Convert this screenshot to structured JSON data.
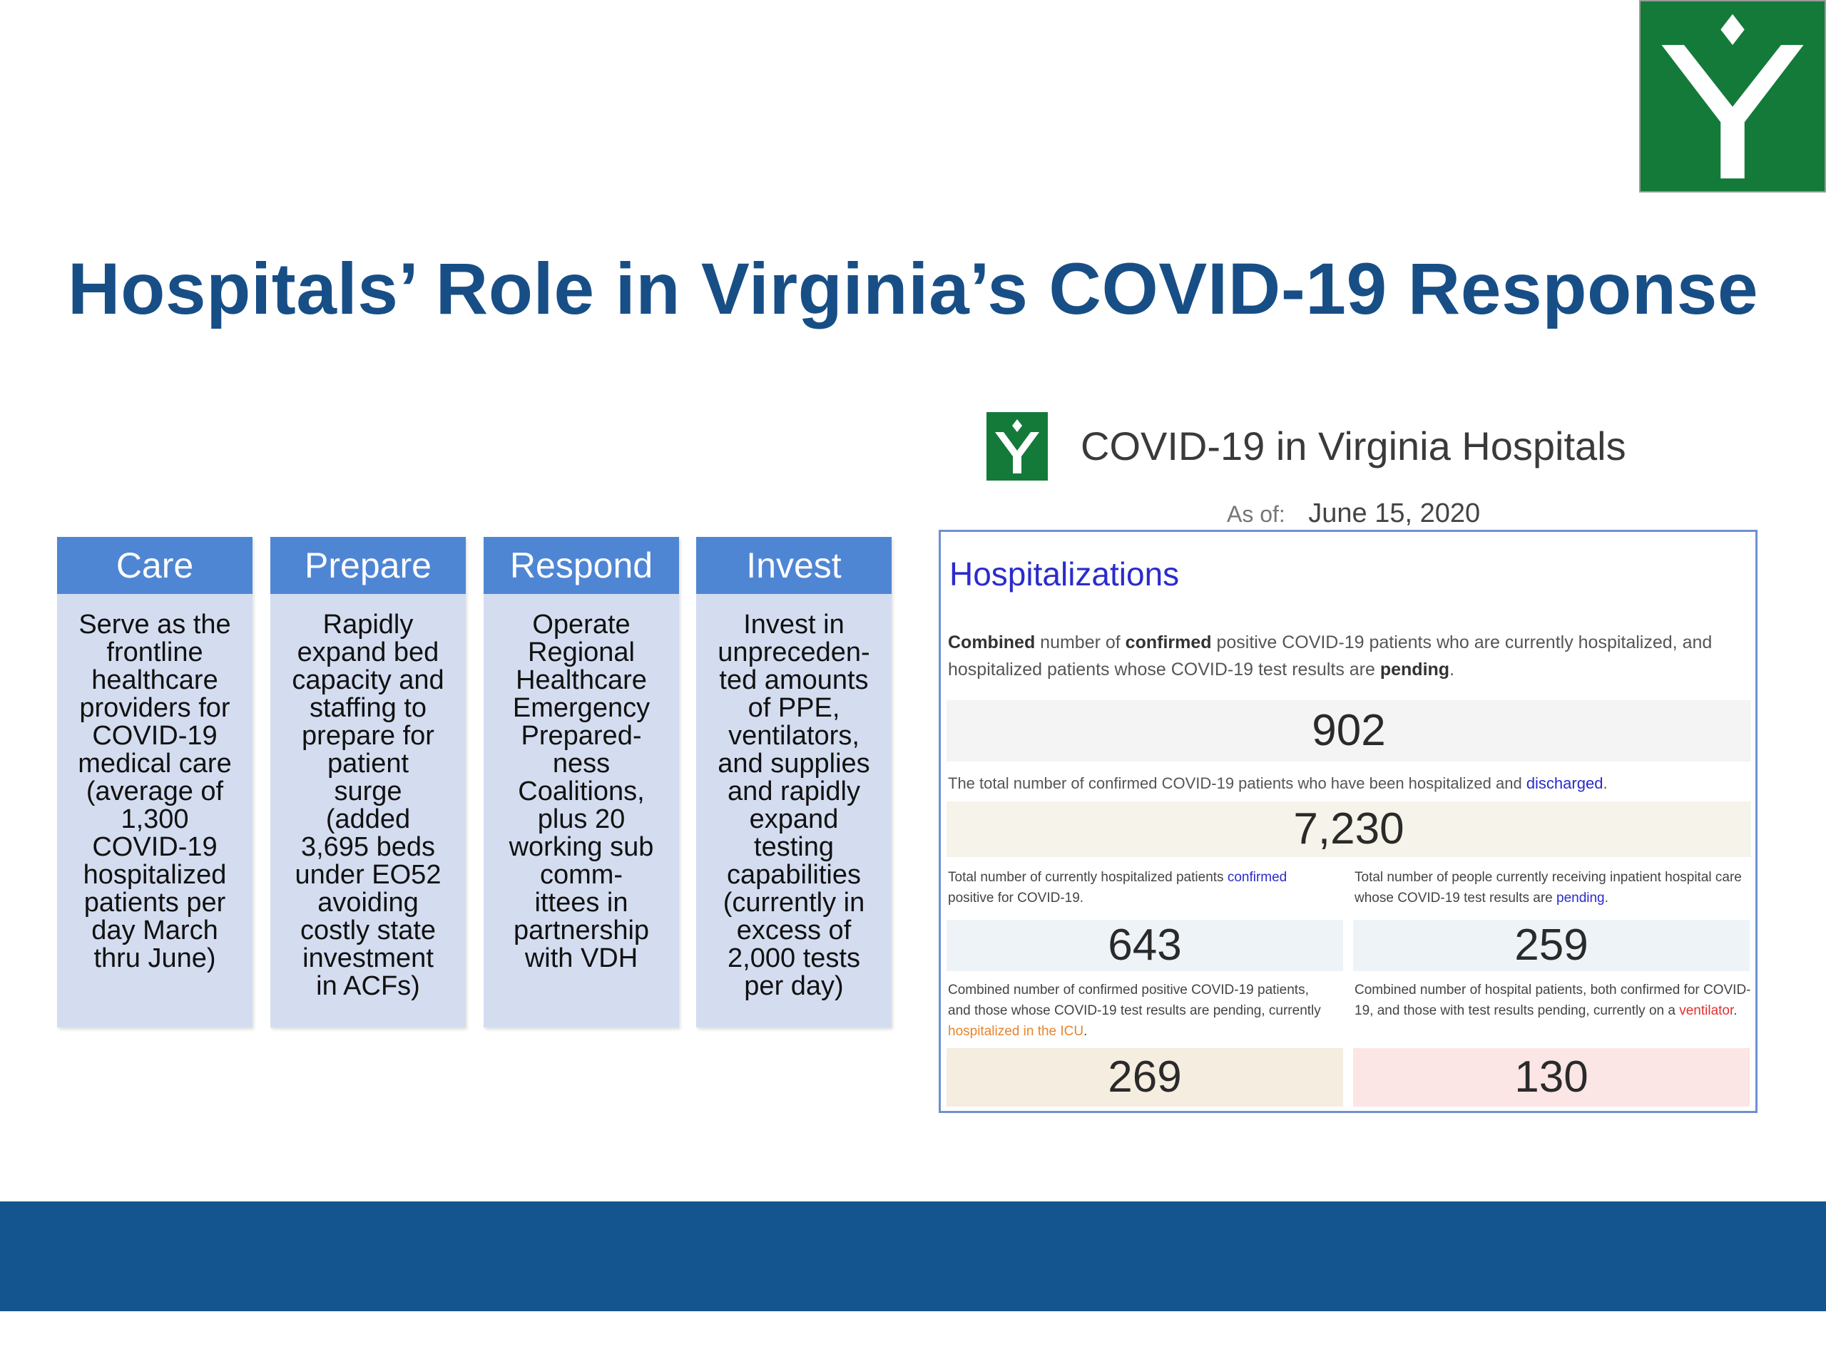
{
  "slide": {
    "title": "Hospitals’ Role in Virginia’s COVID-19 Response",
    "logo_icon": "vhha-y-logo-icon",
    "colors": {
      "title": "#174e86",
      "logo_green": "#147a3a",
      "pillar_head": "#4f86d4",
      "pillar_body": "#d4ddf0",
      "footer": "#15558f"
    }
  },
  "pillars": [
    {
      "title": "Care",
      "lines": [
        "Serve as the",
        "frontline",
        "healthcare",
        "providers for",
        "COVID-19",
        "medical care",
        "(average of",
        "1,300",
        "COVID-19",
        "hospitalized",
        "patients per",
        "day March",
        "thru June)"
      ]
    },
    {
      "title": "Prepare",
      "lines": [
        "Rapidly",
        "expand bed",
        "capacity and",
        "staffing to",
        "prepare for",
        "patient",
        "surge",
        "(added",
        "3,695 beds",
        "under EO52",
        "avoiding",
        "costly state",
        "investment",
        "in ACFs)"
      ]
    },
    {
      "title": "Respond",
      "lines": [
        "Operate",
        "Regional",
        "Healthcare",
        "Emergency",
        "Prepared-",
        "ness",
        "Coalitions,",
        "plus 20",
        "working sub",
        "comm-",
        "ittees in",
        "partnership",
        "with VDH"
      ]
    },
    {
      "title": "Invest",
      "lines": [
        "Invest in",
        "unpreceden-",
        "ted amounts",
        "of PPE,",
        "ventilators,",
        "and supplies",
        "and rapidly",
        "expand",
        "testing",
        "capabilities",
        "(currently in",
        "excess of",
        "2,000 tests",
        "per day)"
      ]
    }
  ],
  "dashboard": {
    "title": "COVID-19 in Virginia Hospitals",
    "as_of_label": "As of:",
    "as_of_date": "June 15, 2020",
    "section_heading": "Hospitalizations",
    "hospitalized": {
      "desc_pre_bold": "Combined",
      "desc_mid": " number of ",
      "desc_bold2": "confirmed",
      "desc_rest": " positive COVID-19 patients who are currently hospitalized, and hospitalized patients whose COVID-19 test results are ",
      "desc_end_bold": "pending",
      "desc_period": ".",
      "value": "902"
    },
    "discharged": {
      "desc": "The total number of confirmed COVID-19 patients who have been hospitalized and ",
      "desc_link": "discharged",
      "desc_period": ".",
      "value": "7,230"
    },
    "confirmed": {
      "desc_pre": "Total number of currently hospitalized patients ",
      "desc_link": "confirmed",
      "desc_post": " positive for COVID-19.",
      "value": "643"
    },
    "pending": {
      "desc_pre": "Total number of people currently receiving inpatient hospital care whose COVID-19 test results are ",
      "desc_link": "pending",
      "desc_post": ".",
      "value": "259"
    },
    "icu": {
      "desc_pre": "Combined number of confirmed positive COVID-19 patients, and those whose COVID-19 test results are pending, currently ",
      "desc_link": "hospitalized in the ICU",
      "desc_post": ".",
      "value": "269"
    },
    "ventilator": {
      "desc_pre": "Combined number of hospital patients, both confirmed for COVID-19, and those with test results pending, currently on a ",
      "desc_link": "ventilator",
      "desc_post": ".",
      "value": "130"
    }
  }
}
